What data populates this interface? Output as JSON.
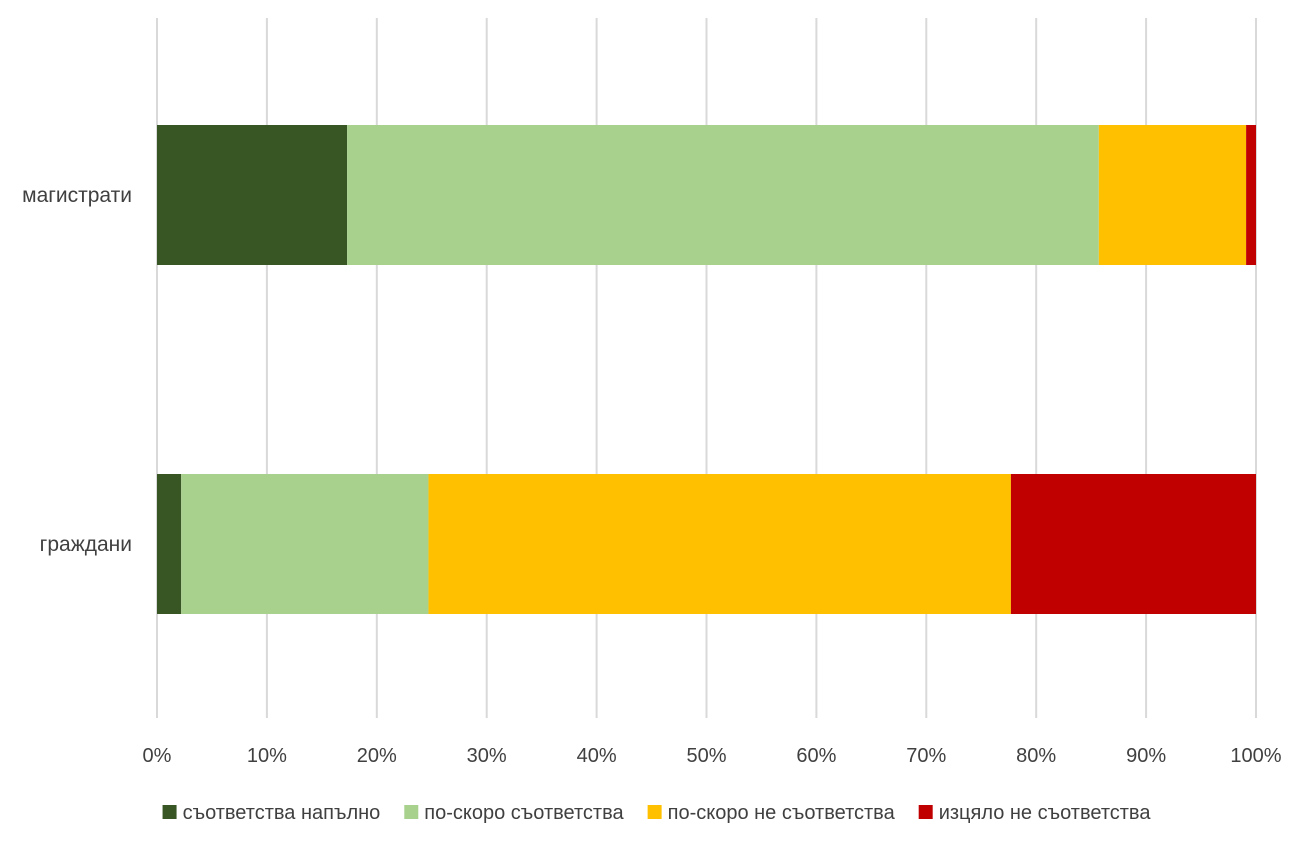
{
  "chart_data": {
    "type": "bar",
    "orientation": "horizontal",
    "stacked": "percent",
    "categories": [
      "магистрати",
      "граждани"
    ],
    "series": [
      {
        "name": "съответства напълно",
        "color": "#375623",
        "values": [
          17.3,
          2.2
        ]
      },
      {
        "name": "по-скоро съответства",
        "color": "#a9d18e",
        "values": [
          68.4,
          22.5
        ]
      },
      {
        "name": "по-скоро не съответства",
        "color": "#ffc000",
        "values": [
          13.4,
          53.0
        ]
      },
      {
        "name": "изцяло не съответства",
        "color": "#c00000",
        "values": [
          0.9,
          22.3
        ]
      }
    ],
    "x_ticks": [
      "0%",
      "10%",
      "20%",
      "30%",
      "40%",
      "50%",
      "60%",
      "70%",
      "80%",
      "90%",
      "100%"
    ],
    "xlim": [
      0,
      100
    ],
    "grid": true,
    "legend_position": "bottom"
  }
}
